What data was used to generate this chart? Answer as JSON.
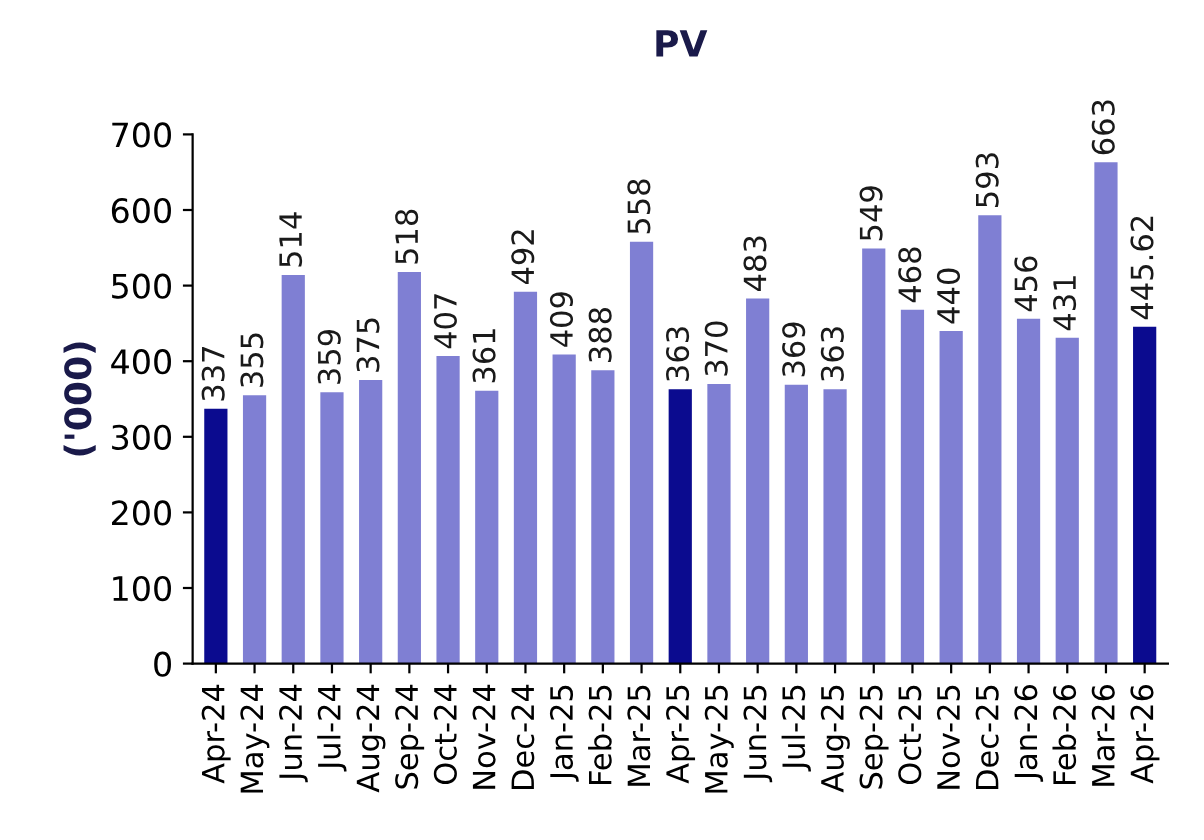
{
  "chart_data": {
    "type": "bar",
    "title": "PV",
    "ylabel": "('000)",
    "categories": [
      "Apr-24",
      "May-24",
      "Jun-24",
      "Jul-24",
      "Aug-24",
      "Sep-24",
      "Oct-24",
      "Nov-24",
      "Dec-24",
      "Jan-25",
      "Feb-25",
      "Mar-25",
      "Apr-25",
      "May-25",
      "Jun-25",
      "Jul-25",
      "Aug-25",
      "Sep-25",
      "Oct-25",
      "Nov-25",
      "Dec-25",
      "Jan-26",
      "Feb-26",
      "Mar-26",
      "Apr-26"
    ],
    "values": [
      337,
      355,
      514,
      359,
      375,
      518,
      407,
      361,
      492,
      409,
      388,
      558,
      363,
      370,
      483,
      369,
      363,
      549,
      468,
      440,
      593,
      456,
      431,
      663,
      445.62
    ],
    "colors": [
      "#0b0b8f",
      "#7f7fd3",
      "#7f7fd3",
      "#7f7fd3",
      "#7f7fd3",
      "#7f7fd3",
      "#7f7fd3",
      "#7f7fd3",
      "#7f7fd3",
      "#7f7fd3",
      "#7f7fd3",
      "#7f7fd3",
      "#0b0b8f",
      "#7f7fd3",
      "#7f7fd3",
      "#7f7fd3",
      "#7f7fd3",
      "#7f7fd3",
      "#7f7fd3",
      "#7f7fd3",
      "#7f7fd3",
      "#7f7fd3",
      "#7f7fd3",
      "#7f7fd3",
      "#0b0b8f"
    ],
    "ylim": [
      0,
      700
    ],
    "yticks": [
      0,
      100,
      200,
      300,
      400,
      500,
      600,
      700
    ],
    "grid": false,
    "legend": false,
    "data_labels": true
  }
}
